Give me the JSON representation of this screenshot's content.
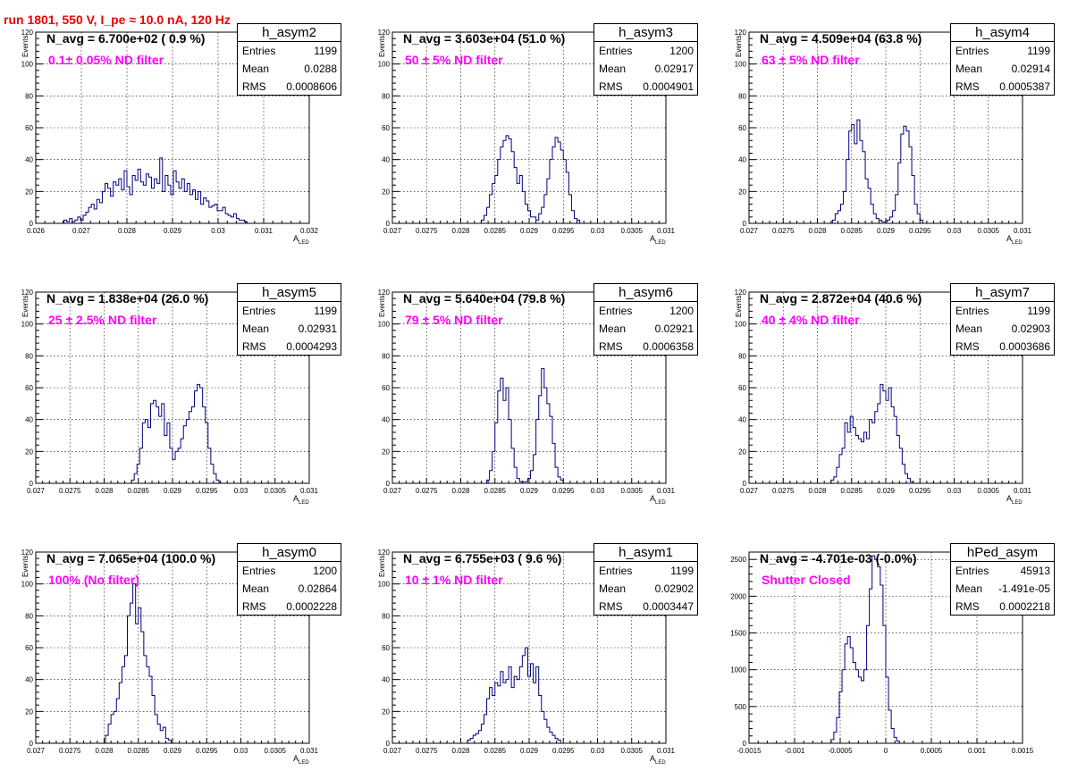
{
  "title": "run 1801,   550 V, I_pe ≈ 10.0 nA, 120 Hz",
  "chart_data": [
    {
      "type": "histogram",
      "name": "h_asym2",
      "xlim": [
        0.026,
        0.032
      ],
      "ylim": [
        0,
        120
      ],
      "xticks": [
        0.026,
        0.027,
        0.028,
        0.029,
        0.03,
        0.031,
        0.032
      ],
      "xtick_labels": [
        "0.026",
        "0.027",
        "0.028",
        "0.029",
        "0.03",
        "0.031",
        "0.032"
      ],
      "yticks": [
        0,
        20,
        40,
        60,
        80,
        100,
        120
      ],
      "xlabel": "A",
      "xlabel_sub": "LED",
      "ylabel": "Events",
      "n_avg": "N_avg = 6.700e+02 ( 0.9 %)",
      "filter": "0.1± 0.05% ND filter",
      "stats": {
        "entries": "1199",
        "mean": "0.0288",
        "rms": "0.0008606"
      },
      "bins": {
        "start": 0.02662,
        "width": 6e-05,
        "counts": [
          2,
          1,
          3,
          1,
          2,
          4,
          2,
          5,
          7,
          10,
          12,
          9,
          15,
          13,
          20,
          25,
          22,
          17,
          26,
          24,
          28,
          21,
          33,
          23,
          18,
          30,
          27,
          34,
          26,
          24,
          31,
          29,
          22,
          28,
          25,
          41,
          20,
          30,
          24,
          18,
          33,
          26,
          22,
          28,
          20,
          25,
          18,
          21,
          15,
          20,
          12,
          16,
          14,
          10,
          11,
          12,
          8,
          8,
          10,
          6,
          5,
          4,
          6,
          3,
          2,
          2,
          1
        ]
      }
    },
    {
      "type": "histogram",
      "name": "h_asym3",
      "xlim": [
        0.027,
        0.031
      ],
      "ylim": [
        0,
        120
      ],
      "xticks": [
        0.027,
        0.0275,
        0.028,
        0.0285,
        0.029,
        0.0295,
        0.03,
        0.0305,
        0.031
      ],
      "xtick_labels": [
        "0.027",
        "0.0275",
        "0.028",
        "0.0285",
        "0.029",
        "0.0295",
        "0.03",
        "0.0305",
        "0.031"
      ],
      "yticks": [
        0,
        20,
        40,
        60,
        80,
        100,
        120
      ],
      "xlabel": "A",
      "xlabel_sub": "LED",
      "ylabel": "Events",
      "n_avg": "N_avg = 3.603e+04 (51.0 %)",
      "filter": "50 ± 5% ND filter",
      "stats": {
        "entries": "1200",
        "mean": "0.02917",
        "rms": "0.0004901"
      },
      "bins": {
        "start": 0.0283,
        "width": 4e-05,
        "counts": [
          2,
          5,
          10,
          18,
          25,
          30,
          40,
          48,
          52,
          55,
          53,
          45,
          35,
          25,
          30,
          20,
          12,
          8,
          4,
          4,
          2,
          6,
          10,
          18,
          28,
          40,
          48,
          54,
          51,
          46,
          40,
          32,
          18,
          8,
          3,
          2
        ]
      }
    },
    {
      "type": "histogram",
      "name": "h_asym4",
      "xlim": [
        0.027,
        0.031
      ],
      "ylim": [
        0,
        120
      ],
      "xticks": [
        0.027,
        0.0275,
        0.028,
        0.0285,
        0.029,
        0.0295,
        0.03,
        0.0305,
        0.031
      ],
      "xtick_labels": [
        "0.027",
        "0.0275",
        "0.028",
        "0.0285",
        "0.029",
        "0.0295",
        "0.03",
        "0.0305",
        "0.031"
      ],
      "yticks": [
        0,
        20,
        40,
        60,
        80,
        100,
        120
      ],
      "xlabel": "A",
      "xlabel_sub": "LED",
      "ylabel": "Events",
      "n_avg": "N_avg = 4.509e+04 (63.8 %)",
      "filter": "63 ± 5% ND filter",
      "stats": {
        "entries": "1199",
        "mean": "0.02914",
        "rms": "0.0005387"
      },
      "bins": {
        "start": 0.02822,
        "width": 4e-05,
        "counts": [
          2,
          6,
          8,
          12,
          20,
          40,
          58,
          62,
          50,
          65,
          52,
          45,
          28,
          22,
          12,
          6,
          3,
          2,
          1,
          1,
          2,
          4,
          8,
          18,
          38,
          56,
          61,
          58,
          48,
          30,
          12,
          6,
          2
        ]
      }
    },
    {
      "type": "histogram",
      "name": "h_asym5",
      "xlim": [
        0.027,
        0.031
      ],
      "ylim": [
        0,
        120
      ],
      "xticks": [
        0.027,
        0.0275,
        0.028,
        0.0285,
        0.029,
        0.0295,
        0.03,
        0.0305,
        0.031
      ],
      "xtick_labels": [
        "0.027",
        "0.0275",
        "0.028",
        "0.0285",
        "0.029",
        "0.0295",
        "0.03",
        "0.0305",
        "0.031"
      ],
      "yticks": [
        0,
        20,
        40,
        60,
        80,
        100,
        120
      ],
      "xlabel": "A",
      "xlabel_sub": "LED",
      "ylabel": "Events",
      "n_avg": "N_avg = 1.838e+04 (26.0 %)",
      "filter": "25 ± 2.5% ND filter",
      "stats": {
        "entries": "1199",
        "mean": "0.02931",
        "rms": "0.0004293"
      },
      "bins": {
        "start": 0.0284,
        "width": 4e-05,
        "counts": [
          2,
          6,
          12,
          22,
          38,
          40,
          35,
          50,
          52,
          48,
          42,
          50,
          30,
          38,
          22,
          15,
          20,
          22,
          28,
          36,
          40,
          45,
          48,
          58,
          62,
          60,
          48,
          38,
          22,
          12,
          6,
          2
        ]
      }
    },
    {
      "type": "histogram",
      "name": "h_asym6",
      "xlim": [
        0.027,
        0.031
      ],
      "ylim": [
        0,
        120
      ],
      "xticks": [
        0.027,
        0.0275,
        0.028,
        0.0285,
        0.029,
        0.0295,
        0.03,
        0.0305,
        0.031
      ],
      "xtick_labels": [
        "0.027",
        "0.0275",
        "0.028",
        "0.0285",
        "0.029",
        "0.0295",
        "0.03",
        "0.0305",
        "0.031"
      ],
      "yticks": [
        0,
        20,
        40,
        60,
        80,
        100,
        120
      ],
      "xlabel": "A",
      "xlabel_sub": "LED",
      "ylabel": "Events",
      "n_avg": "N_avg = 5.640e+04 (79.8 %)",
      "filter": "79 ± 5% ND filter",
      "stats": {
        "entries": "1200",
        "mean": "0.02921",
        "rms": "0.0006358"
      },
      "bins": {
        "start": 0.02838,
        "width": 4e-05,
        "counts": [
          2,
          8,
          20,
          38,
          58,
          66,
          52,
          60,
          40,
          22,
          10,
          3,
          1,
          1,
          1,
          3,
          8,
          18,
          40,
          55,
          72,
          60,
          50,
          42,
          25,
          10,
          4,
          2
        ]
      }
    },
    {
      "type": "histogram",
      "name": "h_asym7",
      "xlim": [
        0.027,
        0.031
      ],
      "ylim": [
        0,
        120
      ],
      "xticks": [
        0.027,
        0.0275,
        0.028,
        0.0285,
        0.029,
        0.0295,
        0.03,
        0.0305,
        0.031
      ],
      "xtick_labels": [
        "0.027",
        "0.0275",
        "0.028",
        "0.0285",
        "0.029",
        "0.0295",
        "0.03",
        "0.0305",
        "0.031"
      ],
      "yticks": [
        0,
        20,
        40,
        60,
        80,
        100,
        120
      ],
      "xlabel": "A",
      "xlabel_sub": "LED",
      "ylabel": "Events",
      "n_avg": "N_avg = 2.872e+04 (40.6 %)",
      "filter": "40 ± 4% ND filter",
      "stats": {
        "entries": "1199",
        "mean": "0.02903",
        "rms": "0.0003686"
      },
      "bins": {
        "start": 0.0282,
        "width": 4e-05,
        "counts": [
          2,
          4,
          10,
          18,
          22,
          38,
          32,
          42,
          35,
          30,
          28,
          26,
          32,
          28,
          40,
          38,
          45,
          50,
          62,
          58,
          52,
          60,
          48,
          42,
          30,
          22,
          12,
          6,
          3,
          1
        ]
      }
    },
    {
      "type": "histogram",
      "name": "h_asym0",
      "xlim": [
        0.027,
        0.031
      ],
      "ylim": [
        0,
        120
      ],
      "xticks": [
        0.027,
        0.0275,
        0.028,
        0.0285,
        0.029,
        0.0295,
        0.03,
        0.0305,
        0.031
      ],
      "xtick_labels": [
        "0.027",
        "0.0275",
        "0.028",
        "0.0285",
        "0.029",
        "0.0295",
        "0.03",
        "0.0305",
        "0.031"
      ],
      "yticks": [
        0,
        20,
        40,
        60,
        80,
        100,
        120
      ],
      "xlabel": "A",
      "xlabel_sub": "LED",
      "ylabel": "Events",
      "n_avg": "N_avg = 7.065e+04 (100.0 %)",
      "filter": "100% (No filter)",
      "stats": {
        "entries": "1200",
        "mean": "0.02864",
        "rms": "0.0002228"
      },
      "bins": {
        "start": 0.02802,
        "width": 4e-05,
        "counts": [
          5,
          12,
          18,
          20,
          28,
          38,
          48,
          55,
          80,
          88,
          100,
          75,
          85,
          70,
          55,
          48,
          42,
          30,
          18,
          12,
          8,
          10,
          3,
          2
        ]
      }
    },
    {
      "type": "histogram",
      "name": "h_asym1",
      "xlim": [
        0.027,
        0.031
      ],
      "ylim": [
        0,
        120
      ],
      "xticks": [
        0.027,
        0.0275,
        0.028,
        0.0285,
        0.029,
        0.0295,
        0.03,
        0.0305,
        0.031
      ],
      "xtick_labels": [
        "0.027",
        "0.0275",
        "0.028",
        "0.0285",
        "0.029",
        "0.0295",
        "0.03",
        "0.0305",
        "0.031"
      ],
      "yticks": [
        0,
        20,
        40,
        60,
        80,
        100,
        120
      ],
      "xlabel": "A",
      "xlabel_sub": "LED",
      "ylabel": "Events",
      "n_avg": "N_avg = 6.755e+03 ( 9.6 %)",
      "filter": "10 ± 1% ND filter",
      "stats": {
        "entries": "1199",
        "mean": "0.02902",
        "rms": "0.0003447"
      },
      "bins": {
        "start": 0.0281,
        "width": 4e-05,
        "counts": [
          2,
          3,
          5,
          6,
          8,
          12,
          18,
          28,
          35,
          30,
          38,
          36,
          45,
          38,
          40,
          48,
          35,
          42,
          40,
          48,
          55,
          60,
          42,
          50,
          38,
          48,
          30,
          20,
          15,
          10,
          7,
          5,
          3,
          2
        ]
      }
    },
    {
      "type": "histogram",
      "name": "hPed_asym",
      "xlim": [
        -0.0015,
        0.0015
      ],
      "ylim": [
        0,
        2600
      ],
      "xticks": [
        -0.0015,
        -0.001,
        -0.0005,
        0,
        0.0005,
        0.001,
        0.0015
      ],
      "xtick_labels": [
        "-0.0015",
        "-0.001",
        "-0.0005",
        "0",
        "0.0005",
        "0.001",
        "0.0015"
      ],
      "yticks": [
        0,
        500,
        1000,
        1500,
        2000,
        2500
      ],
      "xlabel": "",
      "xlabel_sub": "",
      "ylabel": "",
      "n_avg": "N_avg = -4.701e-03 (-0.0%)",
      "filter": "Shutter Closed",
      "stats": {
        "entries": "45913",
        "mean": "-1.491e-05",
        "rms": "0.0002218"
      },
      "bins": {
        "start": -0.0006,
        "width": 3e-05,
        "counts": [
          50,
          150,
          350,
          700,
          1000,
          1350,
          1450,
          1300,
          1100,
          1000,
          900,
          850,
          1000,
          1600,
          2100,
          2550,
          2500,
          2400,
          2150,
          1600,
          900,
          450,
          200,
          80,
          30
        ]
      }
    }
  ]
}
